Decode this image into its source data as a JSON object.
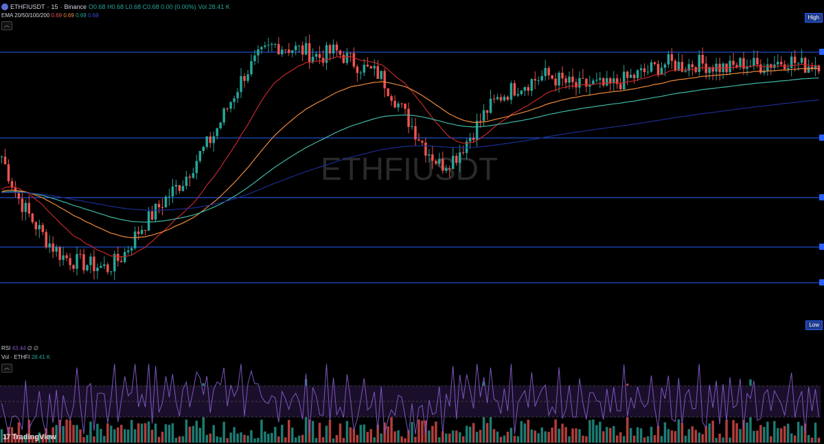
{
  "header": {
    "symbol": "ETHFIUSDT",
    "interval": "15",
    "exchange": "Binance",
    "sep": "·",
    "ohlc_label": "O0.68 H0.68 L0.68 C0.68 0.00 (0.00%)",
    "vol_label": "Vol 28.41 K"
  },
  "ema": {
    "label": "EMA 20/50/100/200",
    "v20": "0.69",
    "v50": "0.69",
    "v100": "0.69",
    "v200": "0.69"
  },
  "watermark": "ETHFIUSDT",
  "price_pills": {
    "high": "High",
    "low": "Low"
  },
  "rsi": {
    "label": "RSI",
    "value": "43.44",
    "extra1": "∅",
    "extra2": "∅"
  },
  "volume": {
    "label": "Vol · ETHFI",
    "value": "28.41 K"
  },
  "brand": {
    "mark": "17",
    "name": "TradingView"
  },
  "colors": {
    "up": "#26a69a",
    "down": "#ef5350",
    "ema20": "#c62828",
    "ema50": "#ef8a3c",
    "ema100": "#3fb9a8",
    "ema200": "#1c2d8f",
    "hline": "#2962ff",
    "rsi_line": "#7e57c2",
    "background": "#000000"
  },
  "icons": {
    "collapse": "chevron-up-icon"
  },
  "chart_data": {
    "type": "candlestick",
    "price_scale_visible": false,
    "horizontal_levels": 5,
    "series": [
      {
        "name": "EMA 20",
        "value": "0.69"
      },
      {
        "name": "EMA 50",
        "value": "0.69"
      },
      {
        "name": "EMA 100",
        "value": "0.69"
      },
      {
        "name": "EMA 200",
        "value": "0.69"
      }
    ],
    "close_path": [
      0.55,
      0.42,
      0.34,
      0.27,
      0.22,
      0.2,
      0.19,
      0.18,
      0.22,
      0.3,
      0.36,
      0.42,
      0.47,
      0.55,
      0.62,
      0.72,
      0.82,
      0.88,
      0.92,
      0.91,
      0.9,
      0.88,
      0.9,
      0.87,
      0.84,
      0.82,
      0.74,
      0.66,
      0.58,
      0.52,
      0.55,
      0.62,
      0.7,
      0.75,
      0.78,
      0.8,
      0.82,
      0.8,
      0.78,
      0.79,
      0.78,
      0.8,
      0.82,
      0.84,
      0.86,
      0.85,
      0.86,
      0.85,
      0.84,
      0.86,
      0.85,
      0.86,
      0.87,
      0.85,
      0.86
    ],
    "rsi": {
      "value": 43.44,
      "levels": [
        70,
        50,
        30
      ],
      "ylim": [
        0,
        100
      ]
    }
  }
}
